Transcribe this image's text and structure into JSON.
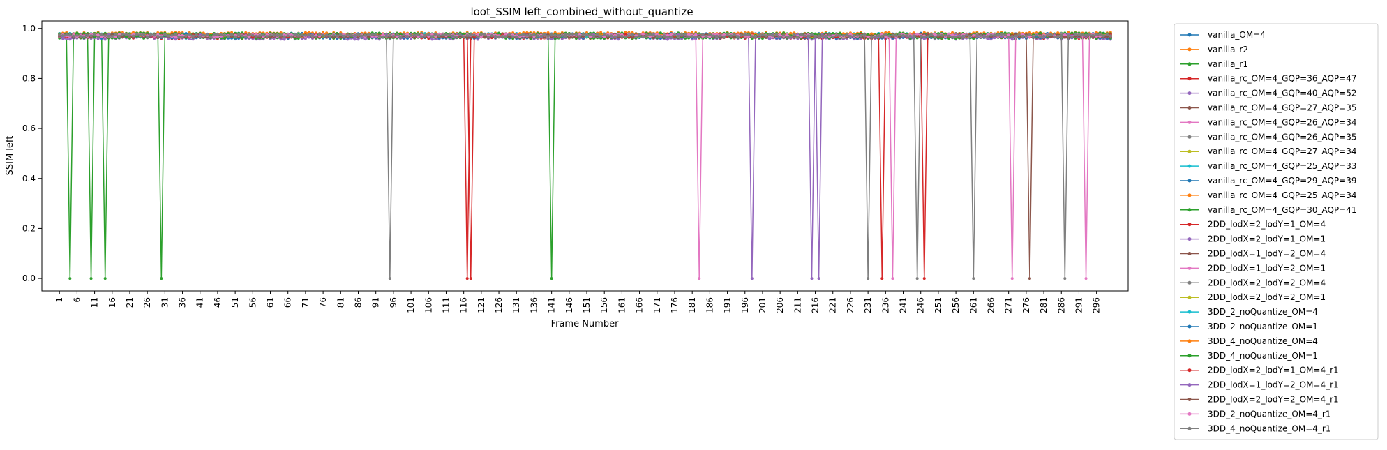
{
  "chart_data": {
    "type": "line",
    "title": "loot_SSIM left_combined_without_quantize",
    "xlabel": "Frame Number",
    "ylabel": "SSIM left",
    "xlim": [
      -4,
      305
    ],
    "ylim": [
      -0.05,
      1.03
    ],
    "x_range": [
      1,
      300
    ],
    "x_ticks": [
      1,
      6,
      11,
      16,
      21,
      26,
      31,
      36,
      41,
      46,
      51,
      56,
      61,
      66,
      71,
      76,
      81,
      86,
      91,
      96,
      101,
      106,
      111,
      116,
      121,
      126,
      131,
      136,
      141,
      146,
      151,
      156,
      161,
      166,
      171,
      176,
      181,
      186,
      191,
      196,
      201,
      206,
      211,
      216,
      221,
      226,
      231,
      236,
      241,
      246,
      251,
      256,
      261,
      266,
      271,
      276,
      281,
      286,
      291,
      296
    ],
    "y_ticks": [
      "0.0",
      "0.2",
      "0.4",
      "0.6",
      "0.8",
      "1.0"
    ],
    "y_tick_values": [
      0.0,
      0.2,
      0.4,
      0.6,
      0.8,
      1.0
    ],
    "grid": false,
    "legend_position": "outside-right",
    "baseline_approx": 0.97,
    "series": [
      {
        "name": "vanilla_OM=4",
        "color": "#1f77b4",
        "baseline": 0.975,
        "drops": []
      },
      {
        "name": "vanilla_r2",
        "color": "#ff7f0e",
        "baseline": 0.978,
        "drops": []
      },
      {
        "name": "vanilla_r1",
        "color": "#2ca02c",
        "baseline": 0.972,
        "drops": [
          4,
          10,
          14,
          30
        ]
      },
      {
        "name": "vanilla_rc_OM=4_GQP=36_AQP=47",
        "color": "#d62728",
        "baseline": 0.965,
        "drops": []
      },
      {
        "name": "vanilla_rc_OM=4_GQP=40_AQP=52",
        "color": "#9467bd",
        "baseline": 0.962,
        "drops": []
      },
      {
        "name": "vanilla_rc_OM=4_GQP=27_AQP=35",
        "color": "#8c564b",
        "baseline": 0.968,
        "drops": []
      },
      {
        "name": "vanilla_rc_OM=4_GQP=26_AQP=34",
        "color": "#e377c2",
        "baseline": 0.97,
        "drops": []
      },
      {
        "name": "vanilla_rc_OM=4_GQP=26_AQP=35",
        "color": "#7f7f7f",
        "baseline": 0.968,
        "drops": []
      },
      {
        "name": "vanilla_rc_OM=4_GQP=27_AQP=34",
        "color": "#bcbd22",
        "baseline": 0.97,
        "drops": []
      },
      {
        "name": "vanilla_rc_OM=4_GQP=25_AQP=33",
        "color": "#17becf",
        "baseline": 0.974,
        "drops": []
      },
      {
        "name": "vanilla_rc_OM=4_GQP=29_AQP=39",
        "color": "#1f77b4",
        "baseline": 0.966,
        "drops": []
      },
      {
        "name": "vanilla_rc_OM=4_GQP=25_AQP=34",
        "color": "#ff7f0e",
        "baseline": 0.973,
        "drops": []
      },
      {
        "name": "vanilla_rc_OM=4_GQP=30_AQP=41",
        "color": "#2ca02c",
        "baseline": 0.966,
        "drops": []
      },
      {
        "name": "2DD_lodX=2_lodY=1_OM=4",
        "color": "#d62728",
        "baseline": 0.972,
        "drops": [
          118
        ]
      },
      {
        "name": "2DD_lodX=2_lodY=1_OM=1",
        "color": "#9467bd",
        "baseline": 0.972,
        "drops": []
      },
      {
        "name": "2DD_lodX=1_lodY=2_OM=4",
        "color": "#8c564b",
        "baseline": 0.972,
        "drops": []
      },
      {
        "name": "2DD_lodX=1_lodY=2_OM=1",
        "color": "#e377c2",
        "baseline": 0.972,
        "drops": []
      },
      {
        "name": "2DD_lodX=2_lodY=2_OM=4",
        "color": "#7f7f7f",
        "baseline": 0.972,
        "drops": [
          95
        ]
      },
      {
        "name": "2DD_lodX=2_lodY=2_OM=1",
        "color": "#bcbd22",
        "baseline": 0.972,
        "drops": []
      },
      {
        "name": "3DD_2_noQuantize_OM=4",
        "color": "#17becf",
        "baseline": 0.974,
        "drops": []
      },
      {
        "name": "3DD_2_noQuantize_OM=1",
        "color": "#1f77b4",
        "baseline": 0.974,
        "drops": []
      },
      {
        "name": "3DD_4_noQuantize_OM=4",
        "color": "#ff7f0e",
        "baseline": 0.977,
        "drops": []
      },
      {
        "name": "3DD_4_noQuantize_OM=1",
        "color": "#2ca02c",
        "baseline": 0.976,
        "drops": [
          141
        ]
      },
      {
        "name": "2DD_lodX=2_lodY=1_OM=4_r1",
        "color": "#d62728",
        "baseline": 0.97,
        "drops": [
          117,
          235,
          247
        ]
      },
      {
        "name": "2DD_lodX=1_lodY=2_OM=4_r1",
        "color": "#9467bd",
        "baseline": 0.97,
        "drops": [
          198,
          215,
          217
        ]
      },
      {
        "name": "2DD_lodX=2_lodY=2_OM=4_r1",
        "color": "#8c564b",
        "baseline": 0.97,
        "drops": [
          277
        ]
      },
      {
        "name": "3DD_2_noQuantize_OM=4_r1",
        "color": "#e377c2",
        "baseline": 0.972,
        "drops": [
          183,
          238,
          272,
          293
        ]
      },
      {
        "name": "3DD_4_noQuantize_OM=4_r1",
        "color": "#7f7f7f",
        "baseline": 0.971,
        "drops": [
          231,
          245,
          261,
          287
        ]
      }
    ]
  }
}
